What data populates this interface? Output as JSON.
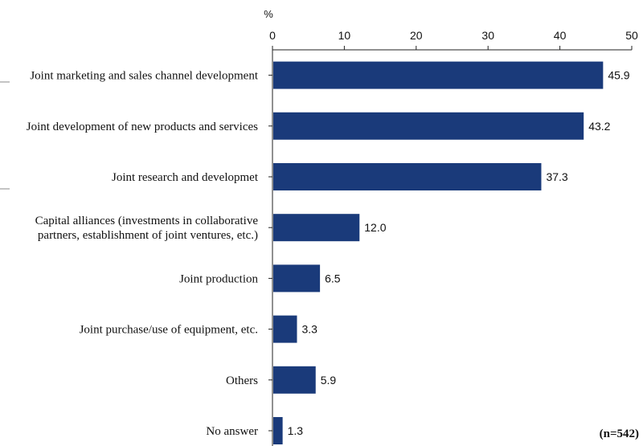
{
  "chart_data": {
    "type": "bar",
    "orientation": "horizontal",
    "unit": "%",
    "categories": [
      [
        "Joint marketing and sales channel development"
      ],
      [
        "Joint development of new products and services"
      ],
      [
        "Joint research and developmet"
      ],
      [
        "Capital alliances (investments in collaborative",
        "partners, establishment of joint ventures, etc.)"
      ],
      [
        "Joint production"
      ],
      [
        "Joint purchase/use of equipment, etc."
      ],
      [
        "Others"
      ],
      [
        "No answer"
      ]
    ],
    "values": [
      45.9,
      43.2,
      37.3,
      12.0,
      6.5,
      3.3,
      5.9,
      1.3
    ],
    "value_labels": [
      "45.9",
      "43.2",
      "37.3",
      "12.0",
      "6.5",
      "3.3",
      "5.9",
      "1.3"
    ],
    "xlim": [
      0,
      50
    ],
    "ticks": [
      0,
      10,
      20,
      30,
      40,
      50
    ],
    "bar_color": "#1a3a7a",
    "grid": false,
    "note": "(n=542)"
  }
}
